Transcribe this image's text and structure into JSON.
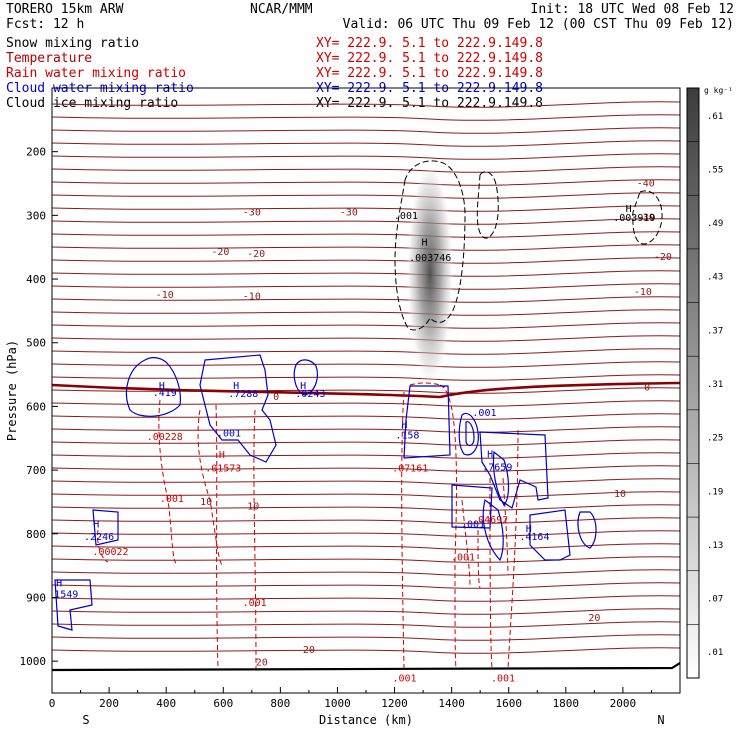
{
  "header": {
    "model": "TORERO  15km ARW",
    "center": "NCAR/MMM",
    "init": "Init: 18 UTC Wed 08 Feb 12",
    "fcst": "Fcst:    12 h",
    "valid": "Valid: 06 UTC Thu 09 Feb 12 (00 CST Thu 09 Feb 12)"
  },
  "legend": [
    {
      "label": "Snow mixing ratio",
      "xy": "XY= 222.9.  5.1 to 222.9.149.8",
      "color": "#000000"
    },
    {
      "label": "Temperature",
      "xy": "XY= 222.9.  5.1 to 222.9.149.8",
      "color": "#b00000"
    },
    {
      "label": "Rain water mixing ratio",
      "xy": "XY= 222.9.  5.1 to 222.9.149.8",
      "color": "#d00000"
    },
    {
      "label": "Cloud water mixing ratio",
      "xy": "XY= 222.9.  5.1 to 222.9.149.8",
      "color": "#0000cc"
    },
    {
      "label": "Cloud ice mixing ratio",
      "xy": "XY= 222.9.  5.1 to 222.9.149.8",
      "color": "#000000"
    }
  ],
  "chart_data": {
    "type": "contour",
    "xlabel": "Distance (km)",
    "ylabel": "Pressure (hPa)",
    "xlim": [
      0,
      2200
    ],
    "ylim": [
      1050,
      100
    ],
    "x_ticks": [
      0,
      200,
      400,
      600,
      800,
      1000,
      1200,
      1400,
      1600,
      1800,
      2000
    ],
    "y_ticks": [
      200,
      300,
      400,
      500,
      600,
      700,
      800,
      900,
      1000
    ],
    "end_labels": {
      "left": "S",
      "right": "N"
    },
    "colorbar": {
      "unit": "g kg⁻¹",
      "labels": [
        ".01",
        ".07",
        ".13",
        ".19",
        ".25",
        ".31",
        ".37",
        ".43",
        ".49",
        ".55",
        ".61"
      ]
    },
    "temperature_labels": [
      {
        "text": "-40",
        "x": 2080,
        "p": 255
      },
      {
        "text": "-30",
        "x": 700,
        "p": 300
      },
      {
        "text": "-30",
        "x": 1040,
        "p": 300
      },
      {
        "text": "-30",
        "x": 2080,
        "p": 308
      },
      {
        "text": "-20",
        "x": 590,
        "p": 362
      },
      {
        "text": "-20",
        "x": 715,
        "p": 365
      },
      {
        "text": "-20",
        "x": 2140,
        "p": 370
      },
      {
        "text": "-10",
        "x": 395,
        "p": 430
      },
      {
        "text": "-10",
        "x": 700,
        "p": 432
      },
      {
        "text": "-10",
        "x": 2070,
        "p": 425
      },
      {
        "text": "0",
        "x": 785,
        "p": 590
      },
      {
        "text": "0",
        "x": 2085,
        "p": 575
      },
      {
        "text": "10",
        "x": 540,
        "p": 755
      },
      {
        "text": "10",
        "x": 705,
        "p": 762
      },
      {
        "text": "10",
        "x": 1990,
        "p": 742
      },
      {
        "text": "20",
        "x": 735,
        "p": 1007
      },
      {
        "text": "20",
        "x": 900,
        "p": 987
      },
      {
        "text": "20",
        "x": 1900,
        "p": 937
      }
    ],
    "snow_labels": [
      {
        "text": ".001",
        "x": 1240,
        "p": 306
      },
      {
        "text": "H",
        "x": 1305,
        "p": 347
      },
      {
        "text": ".003746",
        "x": 1325,
        "p": 372
      },
      {
        "text": "H",
        "x": 2020,
        "p": 295
      },
      {
        "text": ".003919",
        "x": 2040,
        "p": 309
      }
    ],
    "rain_labels": [
      {
        "text": ".00228",
        "x": 395,
        "p": 653
      },
      {
        "text": "H",
        "x": 595,
        "p": 681
      },
      {
        "text": ".01573",
        "x": 600,
        "p": 702
      },
      {
        "text": ".001",
        "x": 420,
        "p": 750
      },
      {
        "text": ".07161",
        "x": 1255,
        "p": 702
      },
      {
        "text": ".04692",
        "x": 1535,
        "p": 783
      },
      {
        "text": ".001",
        "x": 1440,
        "p": 842
      },
      {
        "text": ".00022",
        "x": 205,
        "p": 833
      },
      {
        "text": ".001",
        "x": 710,
        "p": 913
      },
      {
        "text": ".001",
        "x": 1235,
        "p": 1032
      },
      {
        "text": ".001",
        "x": 1580,
        "p": 1032
      }
    ],
    "cloud_water_labels": [
      {
        "text": "H",
        "x": 385,
        "p": 573
      },
      {
        "text": ".419",
        "x": 395,
        "p": 584
      },
      {
        "text": "H",
        "x": 645,
        "p": 573
      },
      {
        "text": ".7288",
        "x": 670,
        "p": 585
      },
      {
        "text": "H",
        "x": 880,
        "p": 573
      },
      {
        "text": ".0243",
        "x": 905,
        "p": 585
      },
      {
        "text": ".001",
        "x": 620,
        "p": 647
      },
      {
        "text": "H",
        "x": 1235,
        "p": 634
      },
      {
        "text": ".158",
        "x": 1245,
        "p": 650
      },
      {
        "text": ".001",
        "x": 1515,
        "p": 615
      },
      {
        "text": "H",
        "x": 1535,
        "p": 680
      },
      {
        "text": ".7659",
        "x": 1560,
        "p": 701
      },
      {
        "text": ".001",
        "x": 1475,
        "p": 790
      },
      {
        "text": "H",
        "x": 1670,
        "p": 797
      },
      {
        "text": ".4164",
        "x": 1690,
        "p": 810
      },
      {
        "text": "H",
        "x": 155,
        "p": 790
      },
      {
        "text": ".2246",
        "x": 165,
        "p": 810
      },
      {
        "text": "H",
        "x": 25,
        "p": 883
      },
      {
        "text": "1549",
        "x": 50,
        "p": 900
      }
    ]
  }
}
